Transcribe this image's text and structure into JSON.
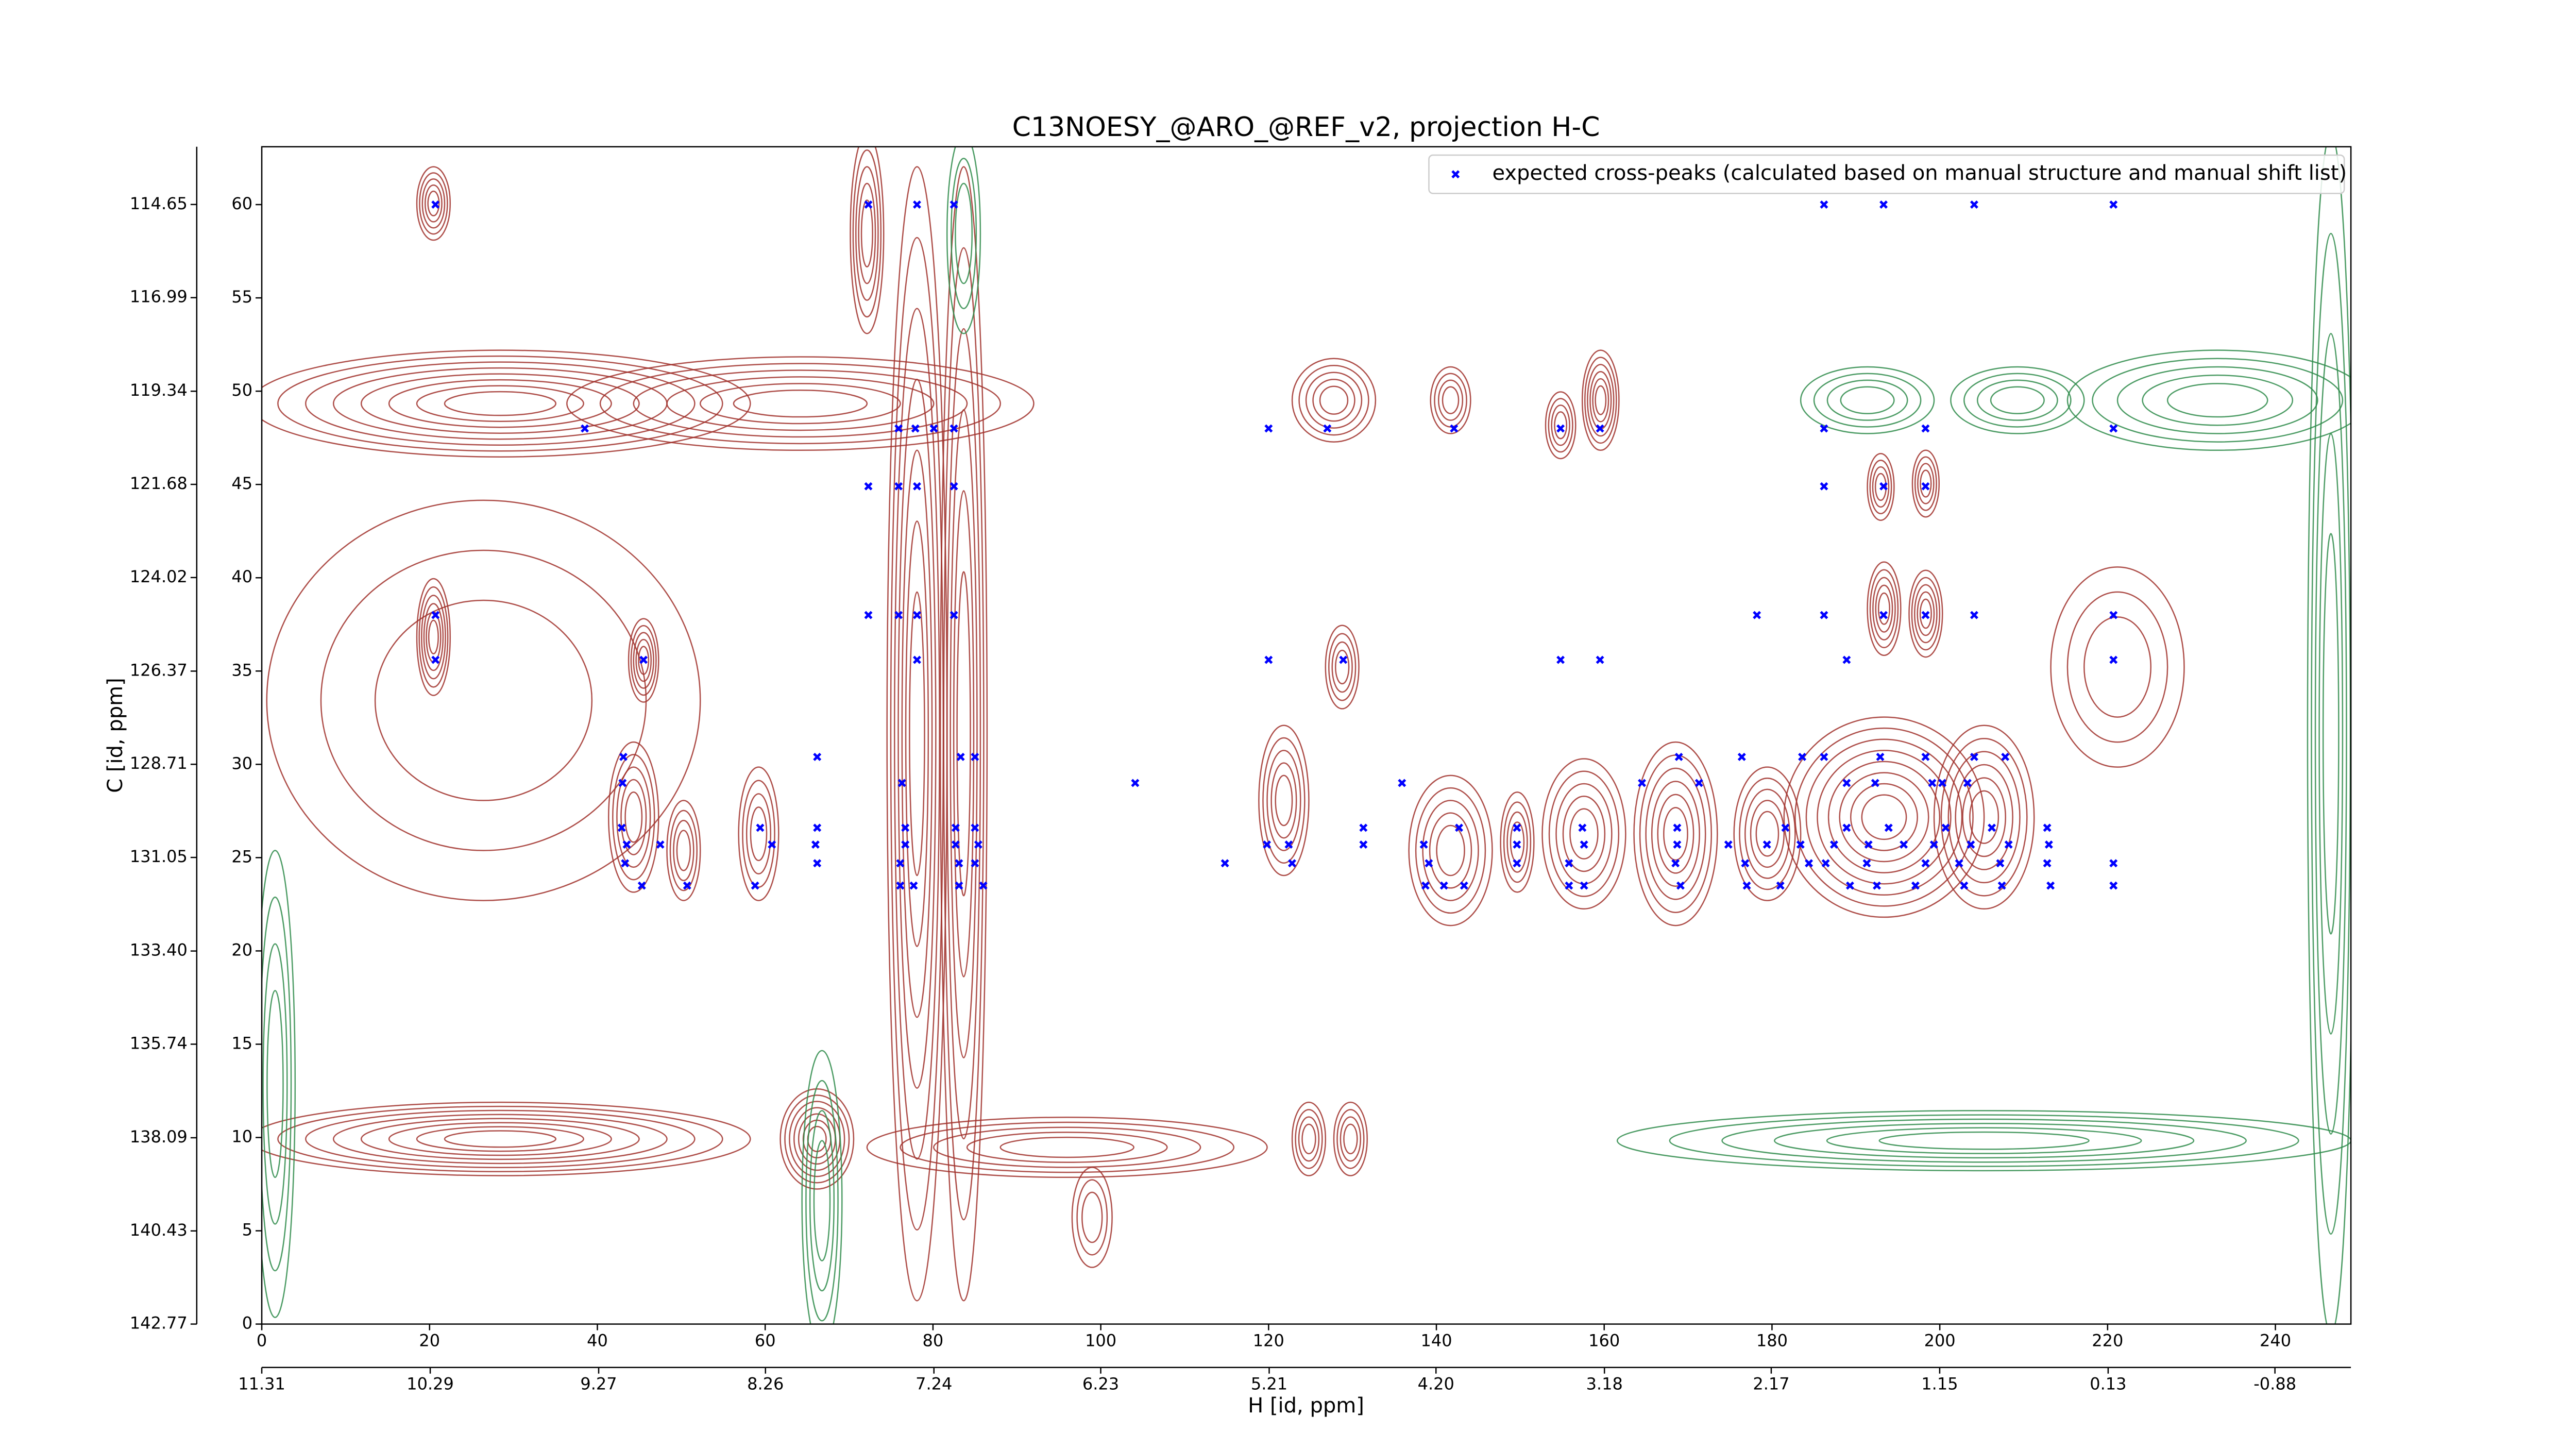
{
  "chart_data": {
    "type": "scatter",
    "title": "C13NOESY_@ARO_@REF_v2, projection H-C",
    "xlabel": "H [id, ppm]",
    "ylabel": "C [id, ppm]",
    "xlim": [
      0,
      249
    ],
    "ylim": [
      0,
      63.1
    ],
    "xticks": [
      0,
      20,
      40,
      60,
      80,
      100,
      120,
      140,
      160,
      180,
      200,
      220,
      240
    ],
    "yticks": [
      0,
      5,
      10,
      15,
      20,
      25,
      30,
      35,
      40,
      45,
      50,
      55,
      60
    ],
    "x2lim": [
      11.31,
      -1.34
    ],
    "x2ticks": [
      11.31,
      10.29,
      9.27,
      8.26,
      7.24,
      6.23,
      5.21,
      {
        "value": 4.2,
        "label": "4.20"
      },
      3.18,
      2.17,
      1.15,
      0.13,
      -0.88
    ],
    "y2lim": [
      142.77,
      113.2
    ],
    "y2ticks": [
      142.77,
      140.43,
      138.09,
      135.74,
      {
        "value": 133.4,
        "label": "133.40"
      },
      131.05,
      128.71,
      126.37,
      124.02,
      121.68,
      119.34,
      116.99,
      114.65
    ],
    "legend": "upper right",
    "series": [
      {
        "name": "expected cross-peaks (calculated based on manual structure and manual shift list)",
        "color": "#0000ff",
        "x": [
          20.7,
          72.3,
          78.1,
          82.5,
          186.2,
          193.3,
          204.1,
          220.7,
          38.5,
          75.9,
          77.9,
          80.1,
          82.5,
          120.0,
          127.0,
          142.1,
          154.8,
          159.5,
          186.2,
          198.3,
          220.7,
          72.3,
          75.9,
          78.1,
          82.5,
          186.2,
          193.3,
          198.3,
          20.7,
          72.3,
          75.9,
          78.1,
          82.5,
          178.2,
          186.2,
          193.3,
          198.3,
          204.1,
          220.7,
          20.7,
          45.5,
          78.1,
          120.0,
          128.9,
          154.8,
          159.5,
          188.9,
          220.7,
          43.1,
          66.2,
          83.3,
          85.0,
          168.9,
          176.4,
          183.6,
          186.2,
          192.9,
          198.3,
          204.1,
          207.8,
          43.0,
          76.3,
          104.1,
          135.9,
          164.5,
          171.3,
          188.9,
          192.3,
          199.1,
          200.3,
          203.3,
          42.9,
          59.4,
          66.2,
          76.7,
          82.7,
          85.0,
          131.3,
          142.7,
          149.6,
          157.4,
          168.7,
          181.6,
          188.9,
          193.9,
          200.7,
          206.2,
          212.8,
          43.5,
          47.5,
          60.8,
          66.0,
          76.7,
          82.7,
          85.4,
          119.8,
          122.4,
          131.3,
          138.5,
          149.6,
          157.6,
          168.7,
          174.8,
          179.4,
          183.4,
          187.4,
          191.5,
          195.7,
          199.3,
          203.7,
          208.2,
          213.0,
          43.3,
          66.2,
          76.1,
          83.1,
          85.0,
          114.8,
          122.8,
          139.1,
          149.6,
          155.8,
          168.5,
          176.8,
          184.4,
          186.4,
          191.3,
          198.3,
          202.3,
          207.2,
          212.8,
          220.7,
          45.3,
          50.7,
          58.8,
          76.1,
          77.7,
          83.1,
          86.0,
          138.7,
          140.9,
          143.3,
          155.8,
          157.6,
          169.1,
          177.0,
          181.0,
          189.3,
          192.5,
          197.1,
          202.9,
          207.4,
          213.2,
          220.7
        ],
        "values": [
          60,
          60,
          60,
          60,
          60,
          60,
          60,
          60,
          48,
          48,
          48,
          48,
          48,
          48,
          48,
          48,
          48,
          48,
          48,
          48,
          48,
          44.9,
          44.9,
          44.9,
          44.9,
          44.9,
          44.9,
          44.9,
          38,
          38,
          38,
          38,
          38,
          38,
          38,
          38,
          38,
          38,
          38,
          35.6,
          35.6,
          35.6,
          35.6,
          35.6,
          35.6,
          35.6,
          35.6,
          35.6,
          30.4,
          30.4,
          30.4,
          30.4,
          30.4,
          30.4,
          30.4,
          30.4,
          30.4,
          30.4,
          30.4,
          30.4,
          29,
          29,
          29,
          29,
          29,
          29,
          29,
          29,
          29,
          29,
          29,
          26.6,
          26.6,
          26.6,
          26.6,
          26.6,
          26.6,
          26.6,
          26.6,
          26.6,
          26.6,
          26.6,
          26.6,
          26.6,
          26.6,
          26.6,
          26.6,
          26.6,
          25.7,
          25.7,
          25.7,
          25.7,
          25.7,
          25.7,
          25.7,
          25.7,
          25.7,
          25.7,
          25.7,
          25.7,
          25.7,
          25.7,
          25.7,
          25.7,
          25.7,
          25.7,
          25.7,
          25.7,
          25.7,
          25.7,
          25.7,
          25.7,
          24.7,
          24.7,
          24.7,
          24.7,
          24.7,
          24.7,
          24.7,
          24.7,
          24.7,
          24.7,
          24.7,
          24.7,
          24.7,
          24.7,
          24.7,
          24.7,
          24.7,
          24.7,
          24.7,
          24.7,
          23.5,
          23.5,
          23.5,
          23.5,
          23.5,
          23.5,
          23.5,
          23.5,
          23.5,
          23.5,
          23.5,
          23.5,
          23.5,
          23.5,
          23.5,
          23.5,
          23.5,
          23.5,
          23.5,
          23.5,
          23.5,
          23.5
        ]
      }
    ]
  }
}
